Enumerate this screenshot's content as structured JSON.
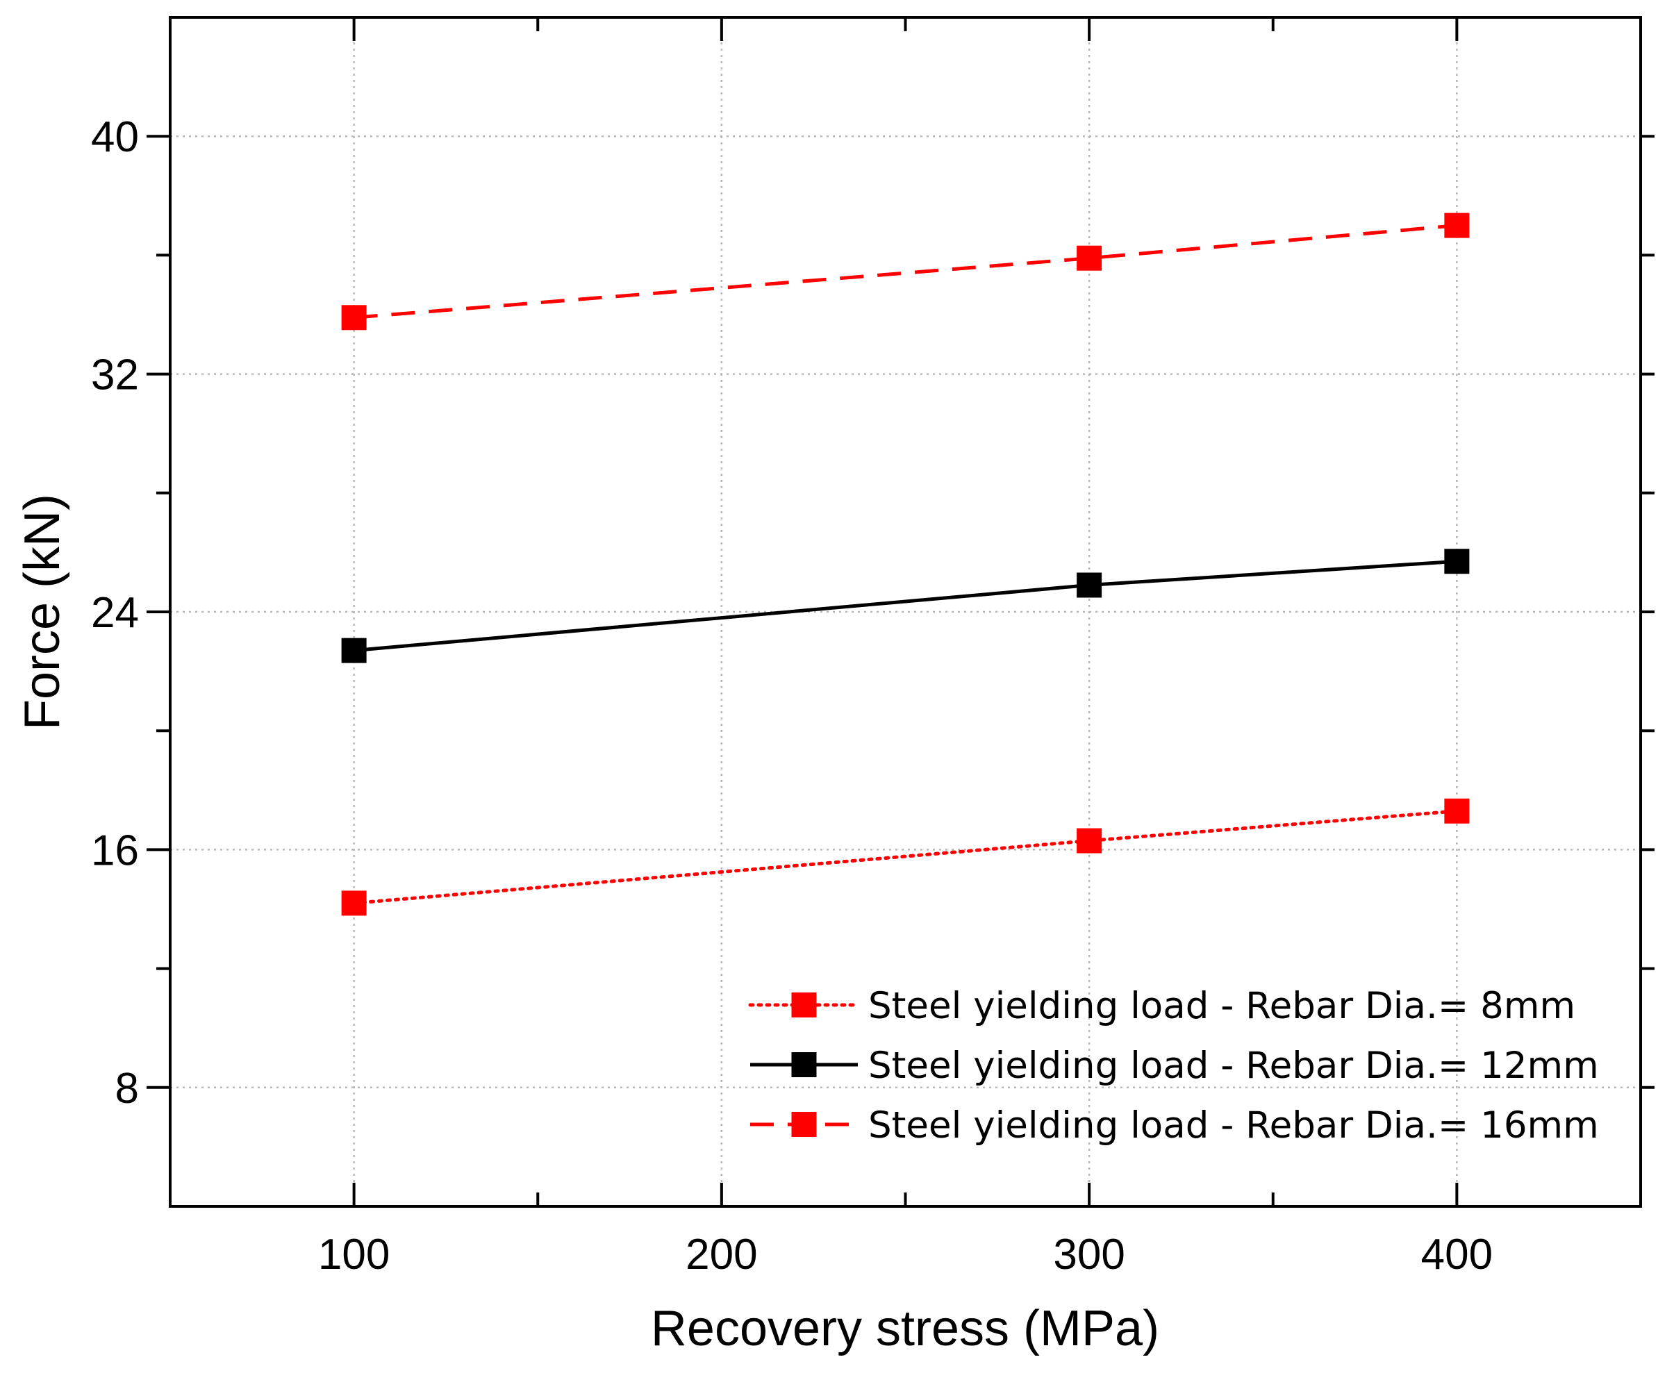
{
  "chart_data": {
    "type": "line",
    "title": "",
    "xlabel": "Recovery stress (MPa)",
    "ylabel": "Force (kN)",
    "xlim": [
      50,
      450
    ],
    "ylim": [
      4,
      44
    ],
    "x_ticks": [
      100,
      200,
      300,
      400
    ],
    "x_minor_ticks": [
      150,
      250,
      350
    ],
    "y_ticks": [
      8,
      16,
      24,
      32,
      40
    ],
    "y_minor_ticks": [
      12,
      20,
      28,
      36
    ],
    "x_tick_labels": [
      "100",
      "200",
      "300",
      "400"
    ],
    "y_tick_labels": [
      "8",
      "16",
      "24",
      "32",
      "40"
    ],
    "grid": true,
    "legend_position": "bottom-right",
    "series": [
      {
        "name": "Steel yielding load - Rebar Dia.= 8mm",
        "x": [
          100,
          300,
          400
        ],
        "values": [
          14.2,
          16.3,
          17.3
        ],
        "color": "#ff0000",
        "line_style": "dotted",
        "marker": "square"
      },
      {
        "name": "Steel yielding load - Rebar Dia.= 12mm",
        "x": [
          100,
          300,
          400
        ],
        "values": [
          22.7,
          24.9,
          25.7
        ],
        "color": "#000000",
        "line_style": "solid",
        "marker": "square"
      },
      {
        "name": "Steel yielding load - Rebar Dia.= 16mm",
        "x": [
          100,
          300,
          400
        ],
        "values": [
          33.9,
          35.9,
          37.0
        ],
        "color": "#ff0000",
        "line_style": "dashed",
        "marker": "square"
      }
    ]
  }
}
